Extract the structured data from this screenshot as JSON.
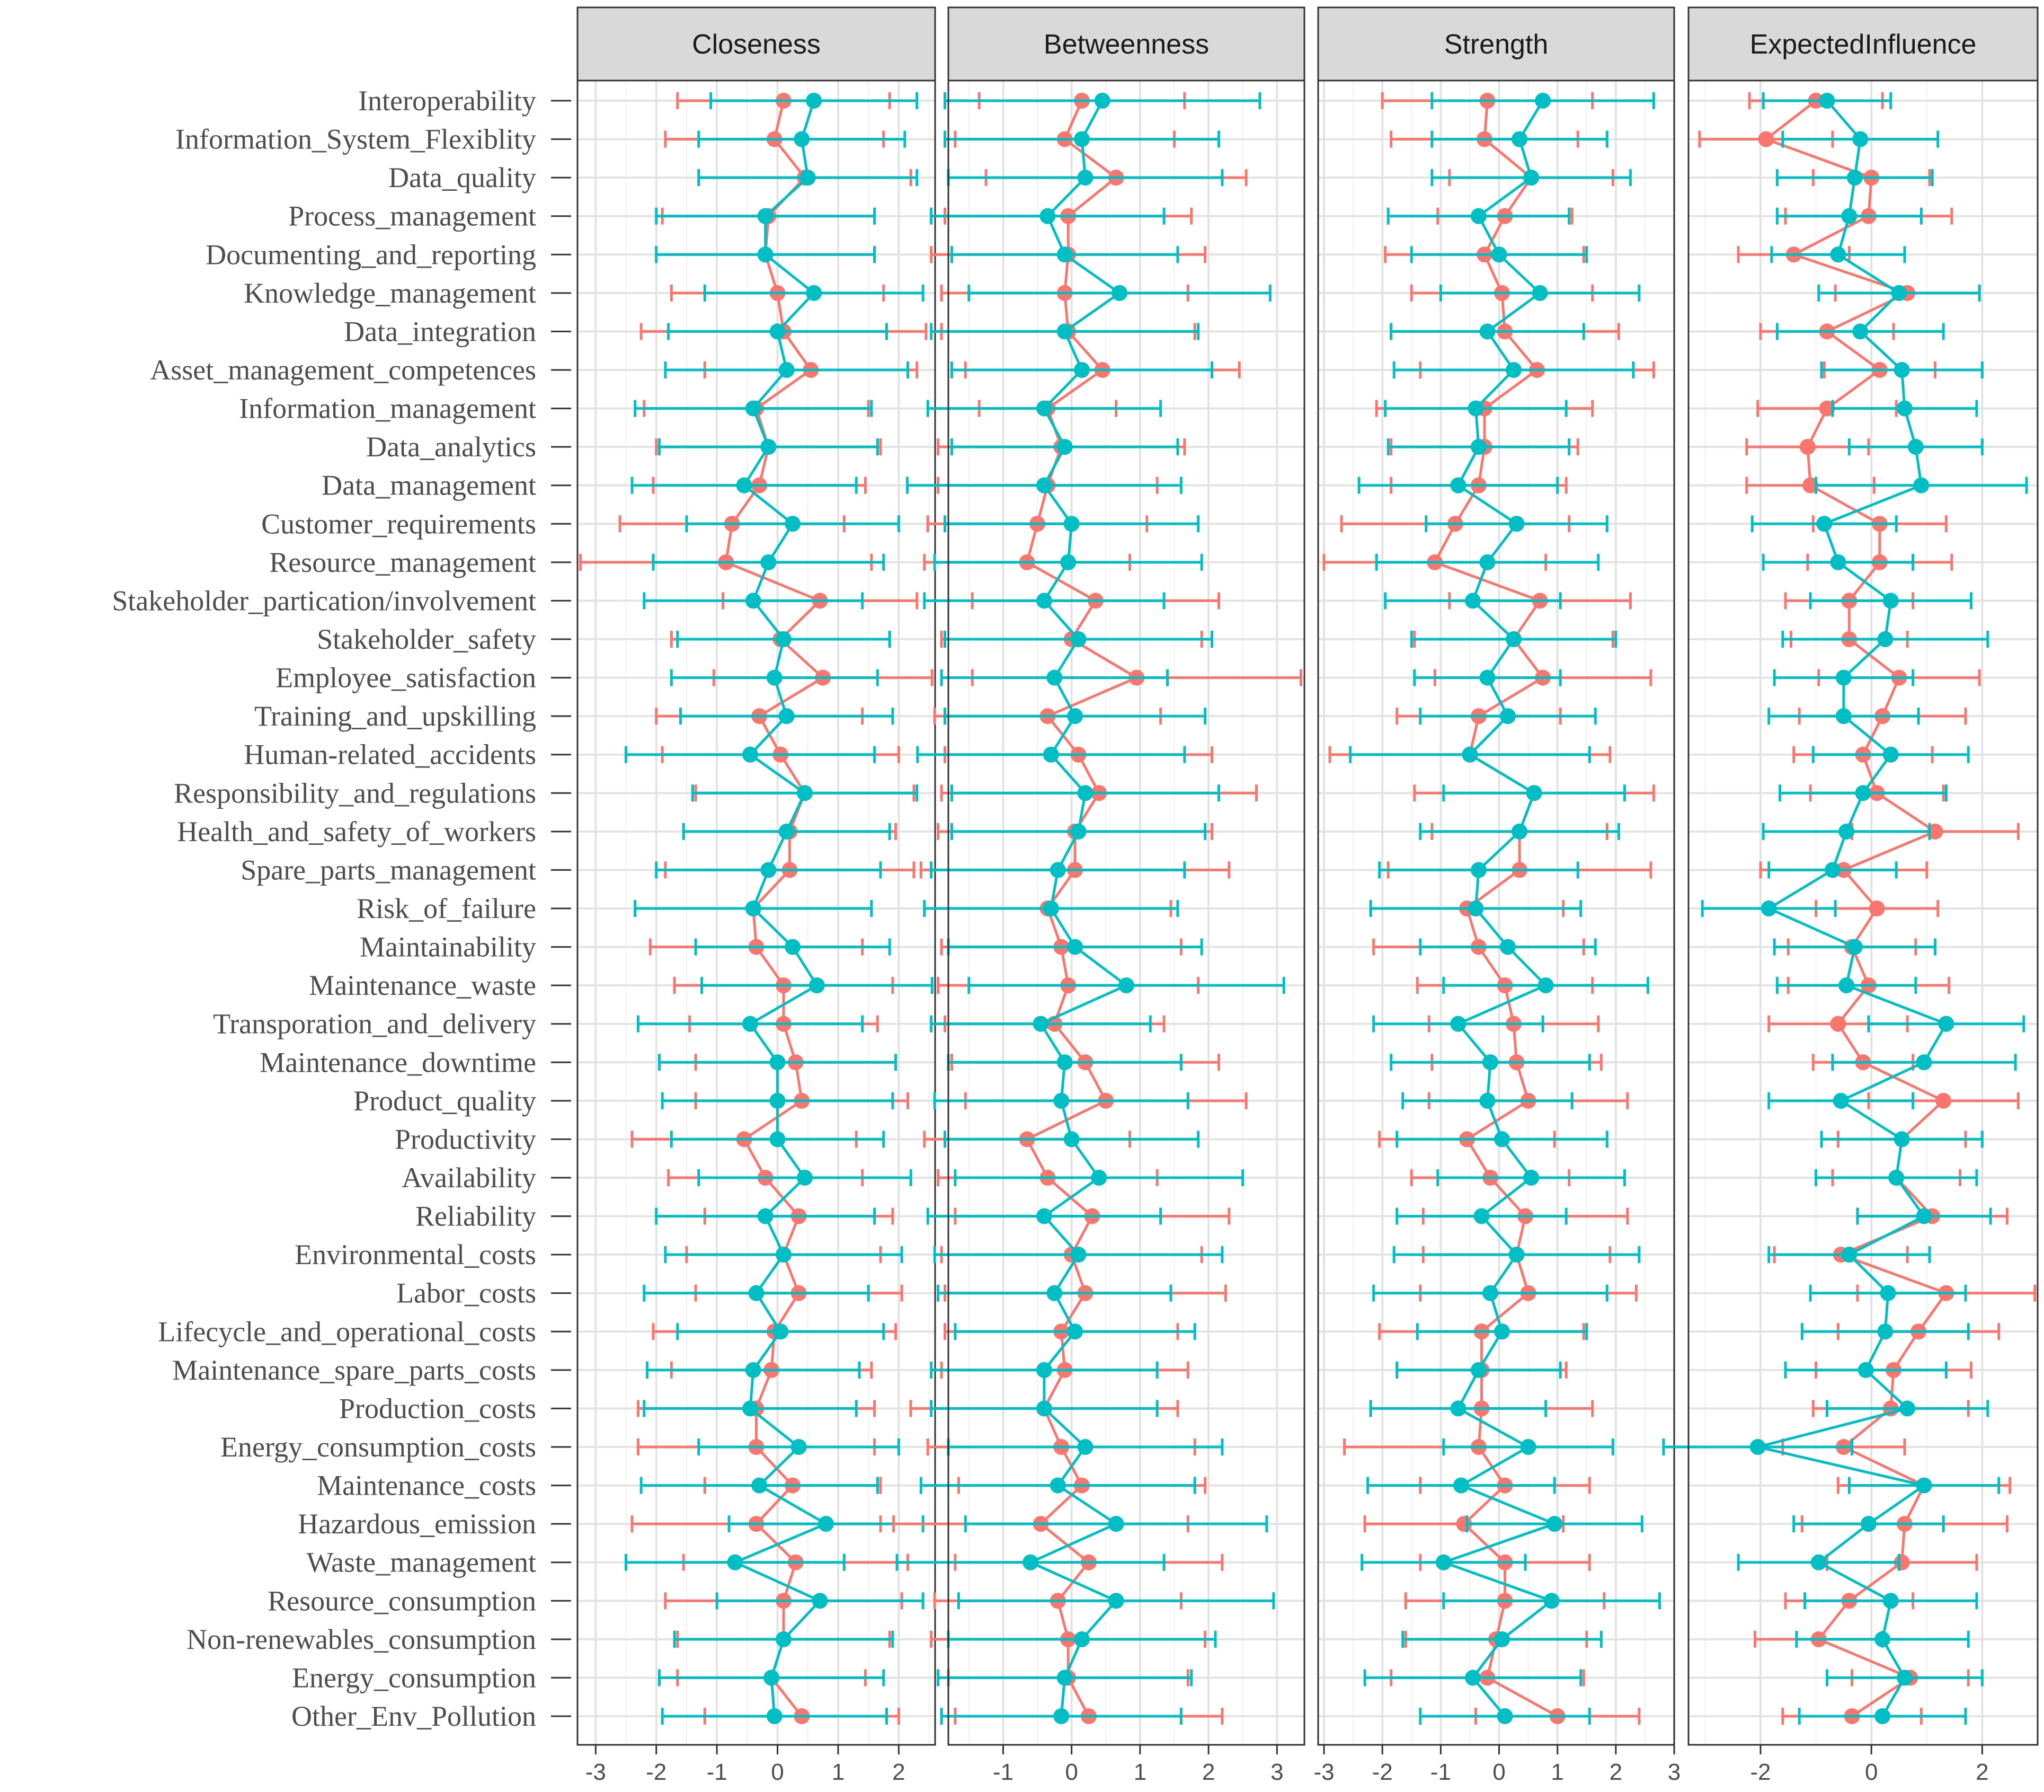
{
  "chart_data": {
    "type": "forest",
    "panels": [
      {
        "name": "Closeness",
        "xlim": [
          -3.3,
          2.6
        ],
        "ticks": [
          -3,
          -2,
          -1,
          0,
          1,
          2
        ]
      },
      {
        "name": "Betweenness",
        "xlim": [
          -1.8,
          3.4
        ],
        "ticks": [
          -1,
          0,
          1,
          2,
          3
        ]
      },
      {
        "name": "Strength",
        "xlim": [
          -3.1,
          3.0
        ],
        "ticks": [
          -3,
          -2,
          -1,
          0,
          1,
          2,
          3
        ]
      },
      {
        "name": "ExpectedInfluence",
        "xlim": [
          -3.3,
          3.0
        ],
        "ticks": [
          -2,
          0,
          2
        ]
      }
    ],
    "series_colors": [
      "#F8766D",
      "#00BFC4"
    ],
    "categories": [
      "Interoperability",
      "Information_System_Flexiblity",
      "Data_quality",
      "Process_management",
      "Documenting_and_reporting",
      "Knowledge_management",
      "Data_integration",
      "Asset_management_competences",
      "Information_management",
      "Data_analytics",
      "Data_management",
      "Customer_requirements",
      "Resource_management",
      "Stakeholder_partication/involvement",
      "Stakeholder_safety",
      "Employee_satisfaction",
      "Training_and_upskilling",
      "Human-related_accidents",
      "Responsibility_and_regulations",
      "Health_and_safety_of_workers",
      "Spare_parts_management",
      "Risk_of_failure",
      "Maintainability",
      "Maintenance_waste",
      "Transporation_and_delivery",
      "Maintenance_downtime",
      "Product_quality",
      "Productivity",
      "Availability",
      "Reliability",
      "Environmental_costs",
      "Labor_costs",
      "Lifecycle_and_operational_costs",
      "Maintenance_spare_parts_costs",
      "Production_costs",
      "Energy_consumption_costs",
      "Maintenance_costs",
      "Hazardous_emission",
      "Waste_management",
      "Resource_consumption",
      "Non-renewables_consumption",
      "Energy_consumption",
      "Other_Env_Pollution"
    ],
    "data": {
      "Closeness": {
        "s1_mid": [
          0.1,
          -0.05,
          0.45,
          -0.15,
          -0.2,
          0.0,
          0.1,
          0.55,
          -0.35,
          -0.15,
          -0.3,
          -0.75,
          -0.85,
          0.7,
          0.05,
          0.75,
          -0.3,
          0.05,
          0.45,
          0.2,
          0.2,
          -0.4,
          -0.35,
          0.1,
          0.1,
          0.3,
          0.4,
          -0.55,
          -0.2,
          0.35,
          0.1,
          0.35,
          -0.05,
          -0.1,
          -0.35,
          -0.35,
          0.25,
          -0.35,
          0.3,
          0.1,
          0.1,
          -0.1,
          0.4
        ],
        "s1_err": [
          1.75,
          1.8,
          1.75,
          1.75,
          1.8,
          1.75,
          2.35,
          1.75,
          1.85,
          1.85,
          1.75,
          1.85,
          2.4,
          1.6,
          1.8,
          1.8,
          1.7,
          1.95,
          1.8,
          1.75,
          2.05,
          1.95,
          1.75,
          1.8,
          1.55,
          1.65,
          1.75,
          1.85,
          1.6,
          1.55,
          1.6,
          1.7,
          2.0,
          1.65,
          1.95,
          1.95,
          1.45,
          2.05,
          1.85,
          1.95,
          1.75,
          1.55,
          1.6
        ],
        "s2_mid": [
          0.6,
          0.4,
          0.5,
          -0.2,
          -0.2,
          0.6,
          0.0,
          0.15,
          -0.4,
          -0.15,
          -0.55,
          0.25,
          -0.15,
          -0.4,
          0.1,
          -0.05,
          0.15,
          -0.45,
          0.45,
          0.15,
          -0.15,
          -0.4,
          0.25,
          0.65,
          -0.45,
          0.0,
          0.0,
          0.0,
          0.45,
          -0.2,
          0.1,
          -0.35,
          0.05,
          -0.4,
          -0.45,
          0.35,
          -0.3,
          0.8,
          -0.7,
          0.7,
          0.1,
          -0.1,
          -0.05
        ],
        "s2_err": [
          1.7,
          1.7,
          1.8,
          1.8,
          1.8,
          1.8,
          1.8,
          2.0,
          1.95,
          1.8,
          1.85,
          1.75,
          1.9,
          1.8,
          1.75,
          1.7,
          1.75,
          2.05,
          1.85,
          1.7,
          1.85,
          1.95,
          1.6,
          1.9,
          1.85,
          1.95,
          1.9,
          1.75,
          1.75,
          1.8,
          1.95,
          1.85,
          1.7,
          1.75,
          1.75,
          1.65,
          1.95,
          1.6,
          1.8,
          1.7,
          1.8,
          1.85,
          1.85
        ]
      },
      "Betweenness": {
        "s1_mid": [
          0.15,
          -0.1,
          0.65,
          -0.05,
          -0.05,
          -0.1,
          -0.05,
          0.45,
          -0.35,
          -0.15,
          -0.35,
          -0.5,
          -0.65,
          0.35,
          0.0,
          0.95,
          -0.35,
          0.1,
          0.4,
          0.05,
          0.05,
          -0.35,
          -0.15,
          -0.05,
          -0.25,
          0.2,
          0.5,
          -0.65,
          -0.35,
          0.3,
          0.0,
          0.2,
          -0.15,
          -0.1,
          -0.4,
          -0.15,
          0.15,
          -0.45,
          0.25,
          -0.2,
          -0.05,
          -0.05,
          0.25
        ],
        "s1_err": [
          1.5,
          1.6,
          1.9,
          1.8,
          2.0,
          1.8,
          1.85,
          2.0,
          1.0,
          1.8,
          1.6,
          1.6,
          1.5,
          1.8,
          1.9,
          2.4,
          1.65,
          1.95,
          2.3,
          2.0,
          2.25,
          1.8,
          1.75,
          1.9,
          1.6,
          1.95,
          2.05,
          1.5,
          1.6,
          2.0,
          1.9,
          2.05,
          1.7,
          1.8,
          1.95,
          1.95,
          1.8,
          2.15,
          1.95,
          1.8,
          2.0,
          1.75,
          1.95
        ],
        "s2_mid": [
          0.45,
          0.15,
          0.2,
          -0.35,
          -0.1,
          0.7,
          -0.1,
          0.15,
          -0.4,
          -0.1,
          -0.4,
          0.0,
          -0.05,
          -0.4,
          0.1,
          -0.25,
          0.05,
          -0.3,
          0.2,
          0.1,
          -0.2,
          -0.3,
          0.05,
          0.8,
          -0.45,
          -0.1,
          -0.15,
          0.0,
          0.4,
          -0.4,
          0.1,
          -0.25,
          0.05,
          -0.4,
          -0.4,
          0.2,
          -0.2,
          0.65,
          -0.6,
          0.65,
          0.15,
          -0.1,
          -0.15
        ],
        "s2_err": [
          2.3,
          2.0,
          2.0,
          1.7,
          1.65,
          2.2,
          1.95,
          1.9,
          1.7,
          1.65,
          2.0,
          1.85,
          1.95,
          1.75,
          1.95,
          1.65,
          1.9,
          1.95,
          1.95,
          1.85,
          1.85,
          1.85,
          1.85,
          2.3,
          1.6,
          1.7,
          1.85,
          1.85,
          2.1,
          1.7,
          2.1,
          1.7,
          1.75,
          1.65,
          1.65,
          2.0,
          2.0,
          2.2,
          1.95,
          2.3,
          1.95,
          1.85,
          1.75
        ]
      },
      "Strength": {
        "s1_mid": [
          -0.2,
          -0.25,
          0.55,
          0.1,
          -0.25,
          0.05,
          0.1,
          0.65,
          -0.25,
          -0.25,
          -0.35,
          -0.75,
          -1.1,
          0.7,
          0.25,
          0.75,
          -0.35,
          -0.5,
          0.6,
          0.35,
          0.35,
          -0.55,
          -0.35,
          0.1,
          0.25,
          0.3,
          0.5,
          -0.55,
          -0.15,
          0.45,
          0.3,
          0.5,
          -0.3,
          -0.3,
          -0.3,
          -0.35,
          0.1,
          -0.6,
          0.1,
          0.1,
          -0.05,
          -0.2,
          1.0
        ],
        "s1_err": [
          1.8,
          1.6,
          1.4,
          1.15,
          1.7,
          1.55,
          1.95,
          2.0,
          1.85,
          1.6,
          1.5,
          1.95,
          1.9,
          1.55,
          1.7,
          1.85,
          1.4,
          2.4,
          2.05,
          1.5,
          2.25,
          1.65,
          1.8,
          1.5,
          1.45,
          1.45,
          1.7,
          1.5,
          1.35,
          1.75,
          1.6,
          1.85,
          1.75,
          1.45,
          1.9,
          2.3,
          1.45,
          1.7,
          1.45,
          1.7,
          1.55,
          1.65,
          1.4
        ],
        "s2_mid": [
          0.75,
          0.35,
          0.55,
          -0.35,
          0.0,
          0.7,
          -0.2,
          0.25,
          -0.4,
          -0.35,
          -0.7,
          0.3,
          -0.2,
          -0.45,
          0.25,
          -0.2,
          0.15,
          -0.5,
          0.6,
          0.35,
          -0.35,
          -0.4,
          0.15,
          0.8,
          -0.7,
          -0.15,
          -0.2,
          0.05,
          0.55,
          -0.3,
          0.3,
          -0.15,
          0.05,
          -0.35,
          -0.7,
          0.5,
          -0.65,
          0.95,
          -0.95,
          0.9,
          0.05,
          -0.45,
          0.1
        ],
        "s2_err": [
          1.9,
          1.5,
          1.7,
          1.55,
          1.5,
          1.7,
          1.65,
          2.05,
          1.55,
          1.55,
          1.7,
          1.55,
          1.9,
          1.5,
          1.75,
          1.25,
          1.5,
          2.05,
          1.55,
          1.7,
          1.7,
          1.8,
          1.5,
          1.75,
          1.45,
          1.7,
          1.45,
          1.8,
          1.6,
          1.45,
          2.1,
          2.0,
          1.45,
          1.4,
          1.5,
          1.45,
          1.6,
          1.5,
          1.4,
          1.85,
          1.7,
          1.85,
          1.45
        ]
      },
      "ExpectedInfluence": {
        "s1_mid": [
          -1.0,
          -1.9,
          0.0,
          -0.05,
          -1.4,
          0.65,
          -0.8,
          0.15,
          -0.8,
          -1.15,
          -1.1,
          0.15,
          0.15,
          -0.4,
          -0.4,
          0.5,
          0.2,
          -0.15,
          0.1,
          1.15,
          -0.5,
          0.1,
          -0.35,
          -0.05,
          -0.6,
          -0.15,
          1.3,
          0.55,
          0.45,
          1.1,
          -0.55,
          1.35,
          0.85,
          0.4,
          0.35,
          -0.5,
          0.95,
          0.6,
          0.55,
          -0.4,
          -0.95,
          0.7,
          -0.35
        ],
        "s1_err": [
          1.2,
          1.2,
          1.05,
          1.5,
          1.0,
          1.3,
          1.2,
          1.0,
          1.25,
          1.1,
          1.15,
          1.2,
          1.3,
          1.15,
          1.05,
          1.45,
          1.5,
          1.25,
          1.2,
          1.5,
          1.5,
          1.1,
          1.15,
          1.45,
          1.25,
          0.9,
          1.35,
          1.15,
          1.15,
          1.35,
          1.2,
          1.6,
          1.45,
          1.4,
          1.4,
          1.1,
          1.55,
          1.85,
          1.35,
          1.15,
          1.15,
          1.05,
          1.25
        ],
        "s2_mid": [
          -0.8,
          -0.2,
          -0.3,
          -0.4,
          -0.6,
          0.5,
          -0.2,
          0.55,
          0.6,
          0.8,
          0.9,
          -0.85,
          -0.6,
          0.35,
          0.25,
          -0.5,
          -0.5,
          0.35,
          -0.15,
          -0.45,
          -0.7,
          -1.85,
          -0.3,
          -0.45,
          1.35,
          0.95,
          -0.55,
          0.55,
          0.45,
          0.95,
          -0.4,
          0.3,
          0.25,
          -0.1,
          0.65,
          -2.05,
          0.95,
          -0.05,
          -0.95,
          0.35,
          0.2,
          0.6,
          0.2
        ],
        "s2_err": [
          1.15,
          1.4,
          1.4,
          1.3,
          1.2,
          1.45,
          1.5,
          1.45,
          1.3,
          1.2,
          1.9,
          1.3,
          1.35,
          1.45,
          1.85,
          1.25,
          1.35,
          1.4,
          1.5,
          1.5,
          1.15,
          1.2,
          1.45,
          1.25,
          1.4,
          1.65,
          1.3,
          1.45,
          1.45,
          1.2,
          1.45,
          1.4,
          1.5,
          1.45,
          1.45,
          1.7,
          1.35,
          1.35,
          1.45,
          1.55,
          1.55,
          1.4,
          1.5
        ]
      }
    }
  }
}
